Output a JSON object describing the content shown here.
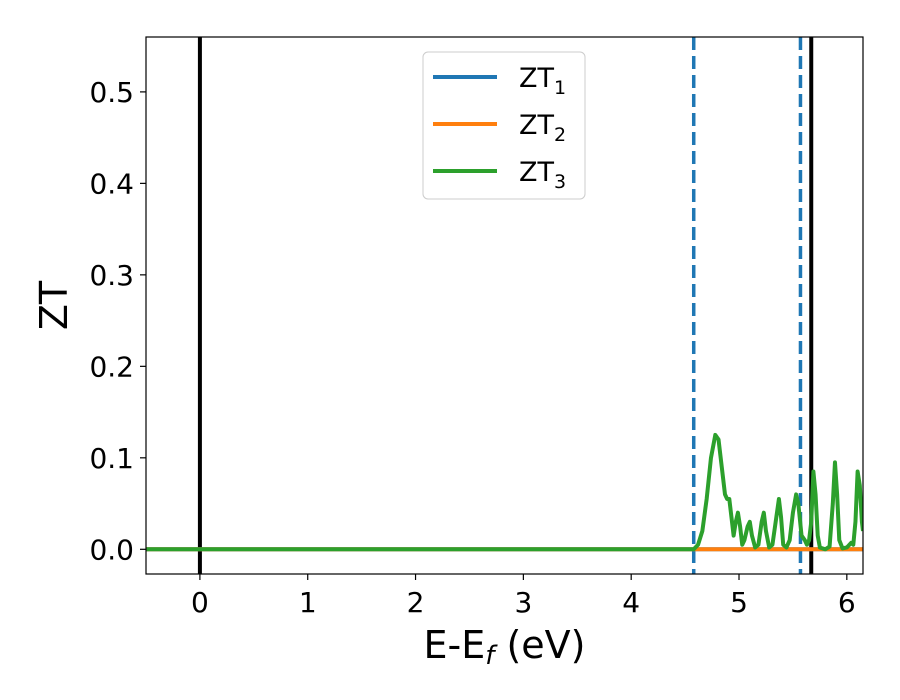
{
  "chart_data": {
    "type": "line",
    "xlabel": {
      "main": "E-E",
      "sub": "f",
      "suffix": " (eV)"
    },
    "ylabel": "ZT",
    "xlim": [
      -0.5,
      6.15
    ],
    "ylim": [
      -0.027,
      0.56
    ],
    "xticks": [
      0,
      1,
      2,
      3,
      4,
      5,
      6
    ],
    "xtick_labels": [
      "0",
      "1",
      "2",
      "3",
      "4",
      "5",
      "6"
    ],
    "yticks": [
      0.0,
      0.1,
      0.2,
      0.3,
      0.4,
      0.5
    ],
    "ytick_labels": [
      "0.0",
      "0.1",
      "0.2",
      "0.3",
      "0.4",
      "0.5"
    ],
    "grid": false,
    "legend_placement": "upper-center",
    "legend": [
      {
        "base": "ZT",
        "sub": "1",
        "color": "#1f77b4"
      },
      {
        "base": "ZT",
        "sub": "2",
        "color": "#ff7f0e"
      },
      {
        "base": "ZT",
        "sub": "3",
        "color": "#2ca02c"
      }
    ],
    "vlines": [
      {
        "x": 0.0,
        "color": "#000000",
        "style": "solid"
      },
      {
        "x": 4.58,
        "color": "#1f77b4",
        "style": "dashed"
      },
      {
        "x": 5.57,
        "color": "#1f77b4",
        "style": "dashed"
      },
      {
        "x": 5.67,
        "color": "#000000",
        "style": "solid"
      }
    ],
    "series": [
      {
        "color": "#1f77b4",
        "points": [
          [
            -0.5,
            0.0
          ],
          [
            6.15,
            0.0
          ]
        ]
      },
      {
        "color": "#ff7f0e",
        "points": [
          [
            -0.5,
            0.0
          ],
          [
            6.15,
            0.0
          ]
        ]
      },
      {
        "color": "#2ca02c",
        "points": [
          [
            -0.5,
            0.0
          ],
          [
            4.55,
            0.0
          ],
          [
            4.58,
            0.0
          ],
          [
            4.62,
            0.005
          ],
          [
            4.66,
            0.02
          ],
          [
            4.7,
            0.055
          ],
          [
            4.74,
            0.1
          ],
          [
            4.78,
            0.125
          ],
          [
            4.81,
            0.12
          ],
          [
            4.84,
            0.09
          ],
          [
            4.87,
            0.06
          ],
          [
            4.89,
            0.055
          ],
          [
            4.91,
            0.055
          ],
          [
            4.93,
            0.035
          ],
          [
            4.95,
            0.015
          ],
          [
            4.97,
            0.03
          ],
          [
            4.99,
            0.04
          ],
          [
            5.01,
            0.025
          ],
          [
            5.03,
            0.005
          ],
          [
            5.05,
            0.01
          ],
          [
            5.08,
            0.025
          ],
          [
            5.1,
            0.03
          ],
          [
            5.12,
            0.015
          ],
          [
            5.15,
            0.002
          ],
          [
            5.18,
            0.005
          ],
          [
            5.21,
            0.03
          ],
          [
            5.23,
            0.04
          ],
          [
            5.25,
            0.02
          ],
          [
            5.28,
            0.002
          ],
          [
            5.31,
            0.005
          ],
          [
            5.34,
            0.03
          ],
          [
            5.37,
            0.055
          ],
          [
            5.39,
            0.035
          ],
          [
            5.41,
            0.005
          ],
          [
            5.44,
            0.002
          ],
          [
            5.47,
            0.01
          ],
          [
            5.5,
            0.04
          ],
          [
            5.53,
            0.06
          ],
          [
            5.55,
            0.05
          ],
          [
            5.58,
            0.015
          ],
          [
            5.61,
            0.01
          ],
          [
            5.63,
            0.005
          ],
          [
            5.65,
            0.01
          ],
          [
            5.67,
            0.03
          ],
          [
            5.69,
            0.085
          ],
          [
            5.71,
            0.06
          ],
          [
            5.73,
            0.015
          ],
          [
            5.75,
            0.002
          ],
          [
            5.8,
            0.0
          ],
          [
            5.84,
            0.003
          ],
          [
            5.87,
            0.05
          ],
          [
            5.89,
            0.095
          ],
          [
            5.91,
            0.06
          ],
          [
            5.93,
            0.01
          ],
          [
            5.96,
            0.001
          ],
          [
            6.0,
            0.002
          ],
          [
            6.04,
            0.007
          ],
          [
            6.06,
            0.005
          ],
          [
            6.08,
            0.03
          ],
          [
            6.1,
            0.085
          ],
          [
            6.12,
            0.07
          ],
          [
            6.14,
            0.03
          ],
          [
            6.15,
            0.02
          ]
        ]
      }
    ]
  }
}
